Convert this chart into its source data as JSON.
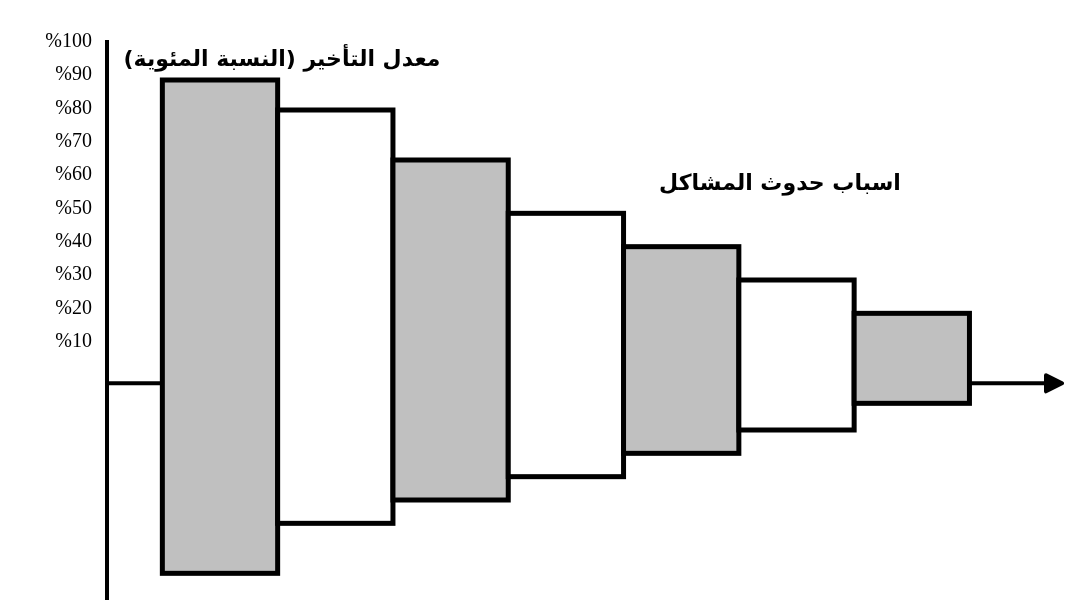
{
  "chart_data": {
    "type": "bar",
    "ylabel": "معدل التأخير (النسبة المئوية)",
    "xlabel": "اسباب حدوث المشاكل",
    "categories": [
      null,
      null,
      null,
      null,
      null,
      null,
      null
    ],
    "base": [
      -60,
      -45,
      -38,
      -31,
      -24,
      -17,
      -9
    ],
    "values": [
      148,
      124,
      102,
      79,
      62,
      45,
      27
    ],
    "colors": [
      "#c0c0c0",
      "#ffffff",
      "#c0c0c0",
      "#ffffff",
      "#c0c0c0",
      "#ffffff",
      "#c0c0c0"
    ],
    "ylim": [
      -68,
      100
    ],
    "yticks": [
      {
        "value": 10,
        "label": "%10"
      },
      {
        "value": 20,
        "label": "%20"
      },
      {
        "value": 30,
        "label": "%30"
      },
      {
        "value": 40,
        "label": "%40"
      },
      {
        "value": 50,
        "label": "%50"
      },
      {
        "value": 60,
        "label": "%60"
      },
      {
        "value": 70,
        "label": "%70"
      },
      {
        "value": 80,
        "label": "%80"
      },
      {
        "value": 90,
        "label": "%90"
      },
      {
        "value": 100,
        "label": "%100"
      }
    ],
    "ref_lines": [
      {
        "axis": "y",
        "value": -3
      }
    ]
  }
}
